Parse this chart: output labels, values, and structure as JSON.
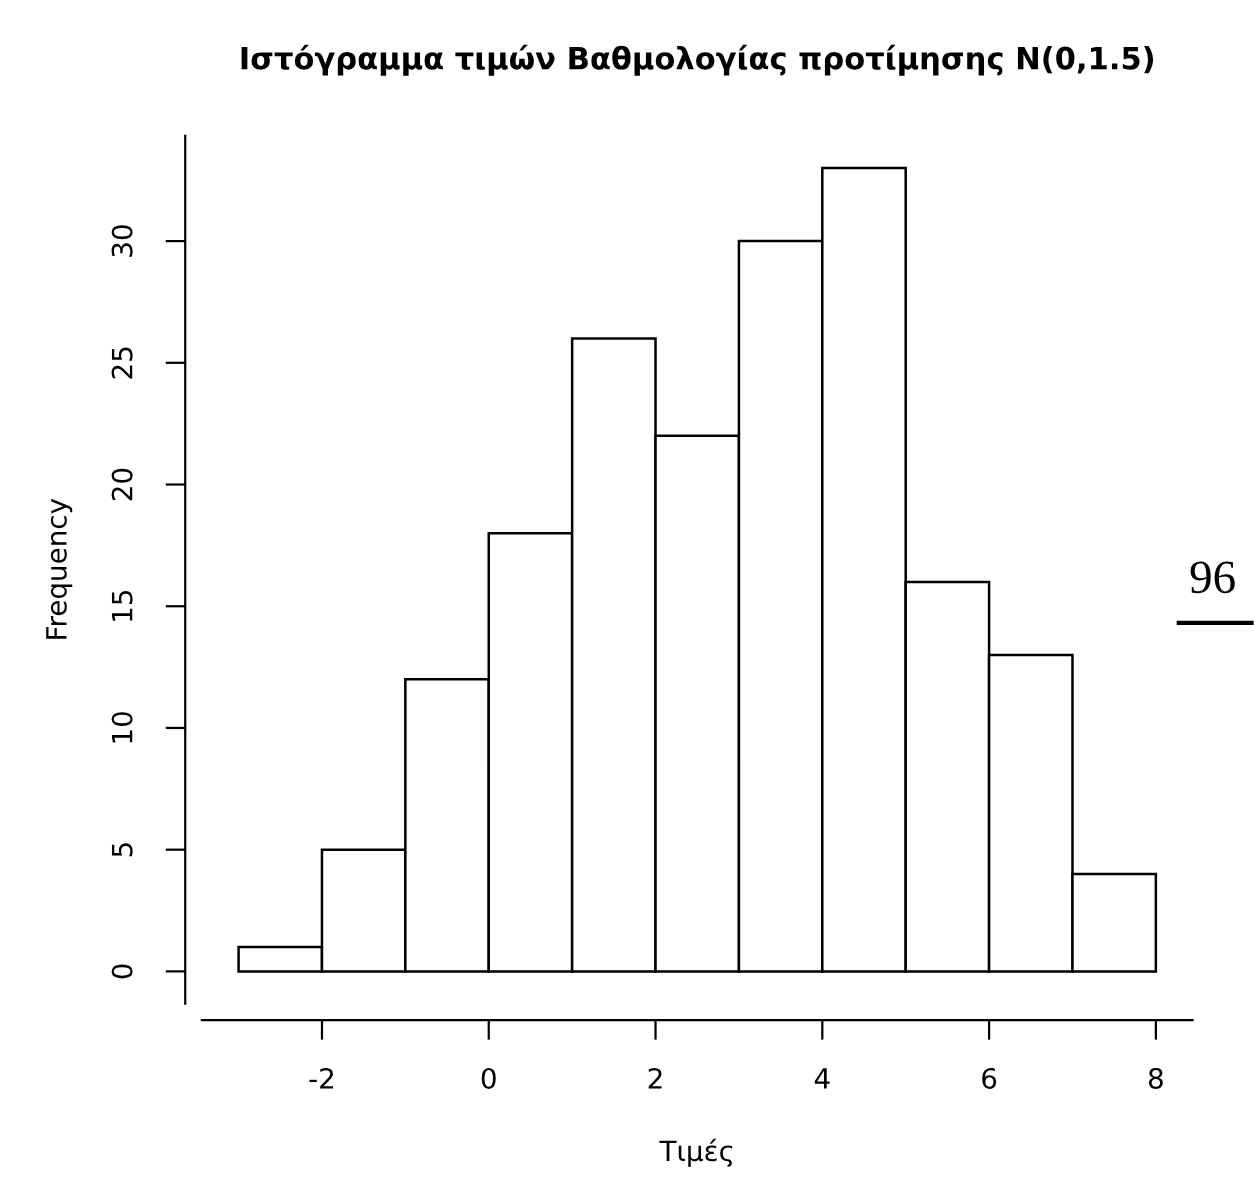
{
  "chart_data": {
    "type": "histogram",
    "title": "Ιστόγραμμα τιμών Βαθμολογίας προτίμησης N(0,1.5)",
    "xlabel": "Τιμές",
    "ylabel": "Frequency",
    "bins": [
      -3,
      -2,
      -1,
      0,
      1,
      2,
      3,
      4,
      5,
      6,
      7,
      8
    ],
    "values": [
      1,
      5,
      12,
      18,
      26,
      22,
      30,
      33,
      16,
      13,
      4
    ],
    "color": "#ffffff",
    "xlim": [
      -3.44,
      8.44
    ],
    "ylim": [
      -1.32,
      34.32
    ],
    "xticks": [
      -2,
      0,
      2,
      4,
      6,
      8
    ],
    "yticks": [
      0,
      5,
      10,
      15,
      20,
      25,
      30
    ],
    "grid": false,
    "annotations": [
      "96"
    ]
  }
}
